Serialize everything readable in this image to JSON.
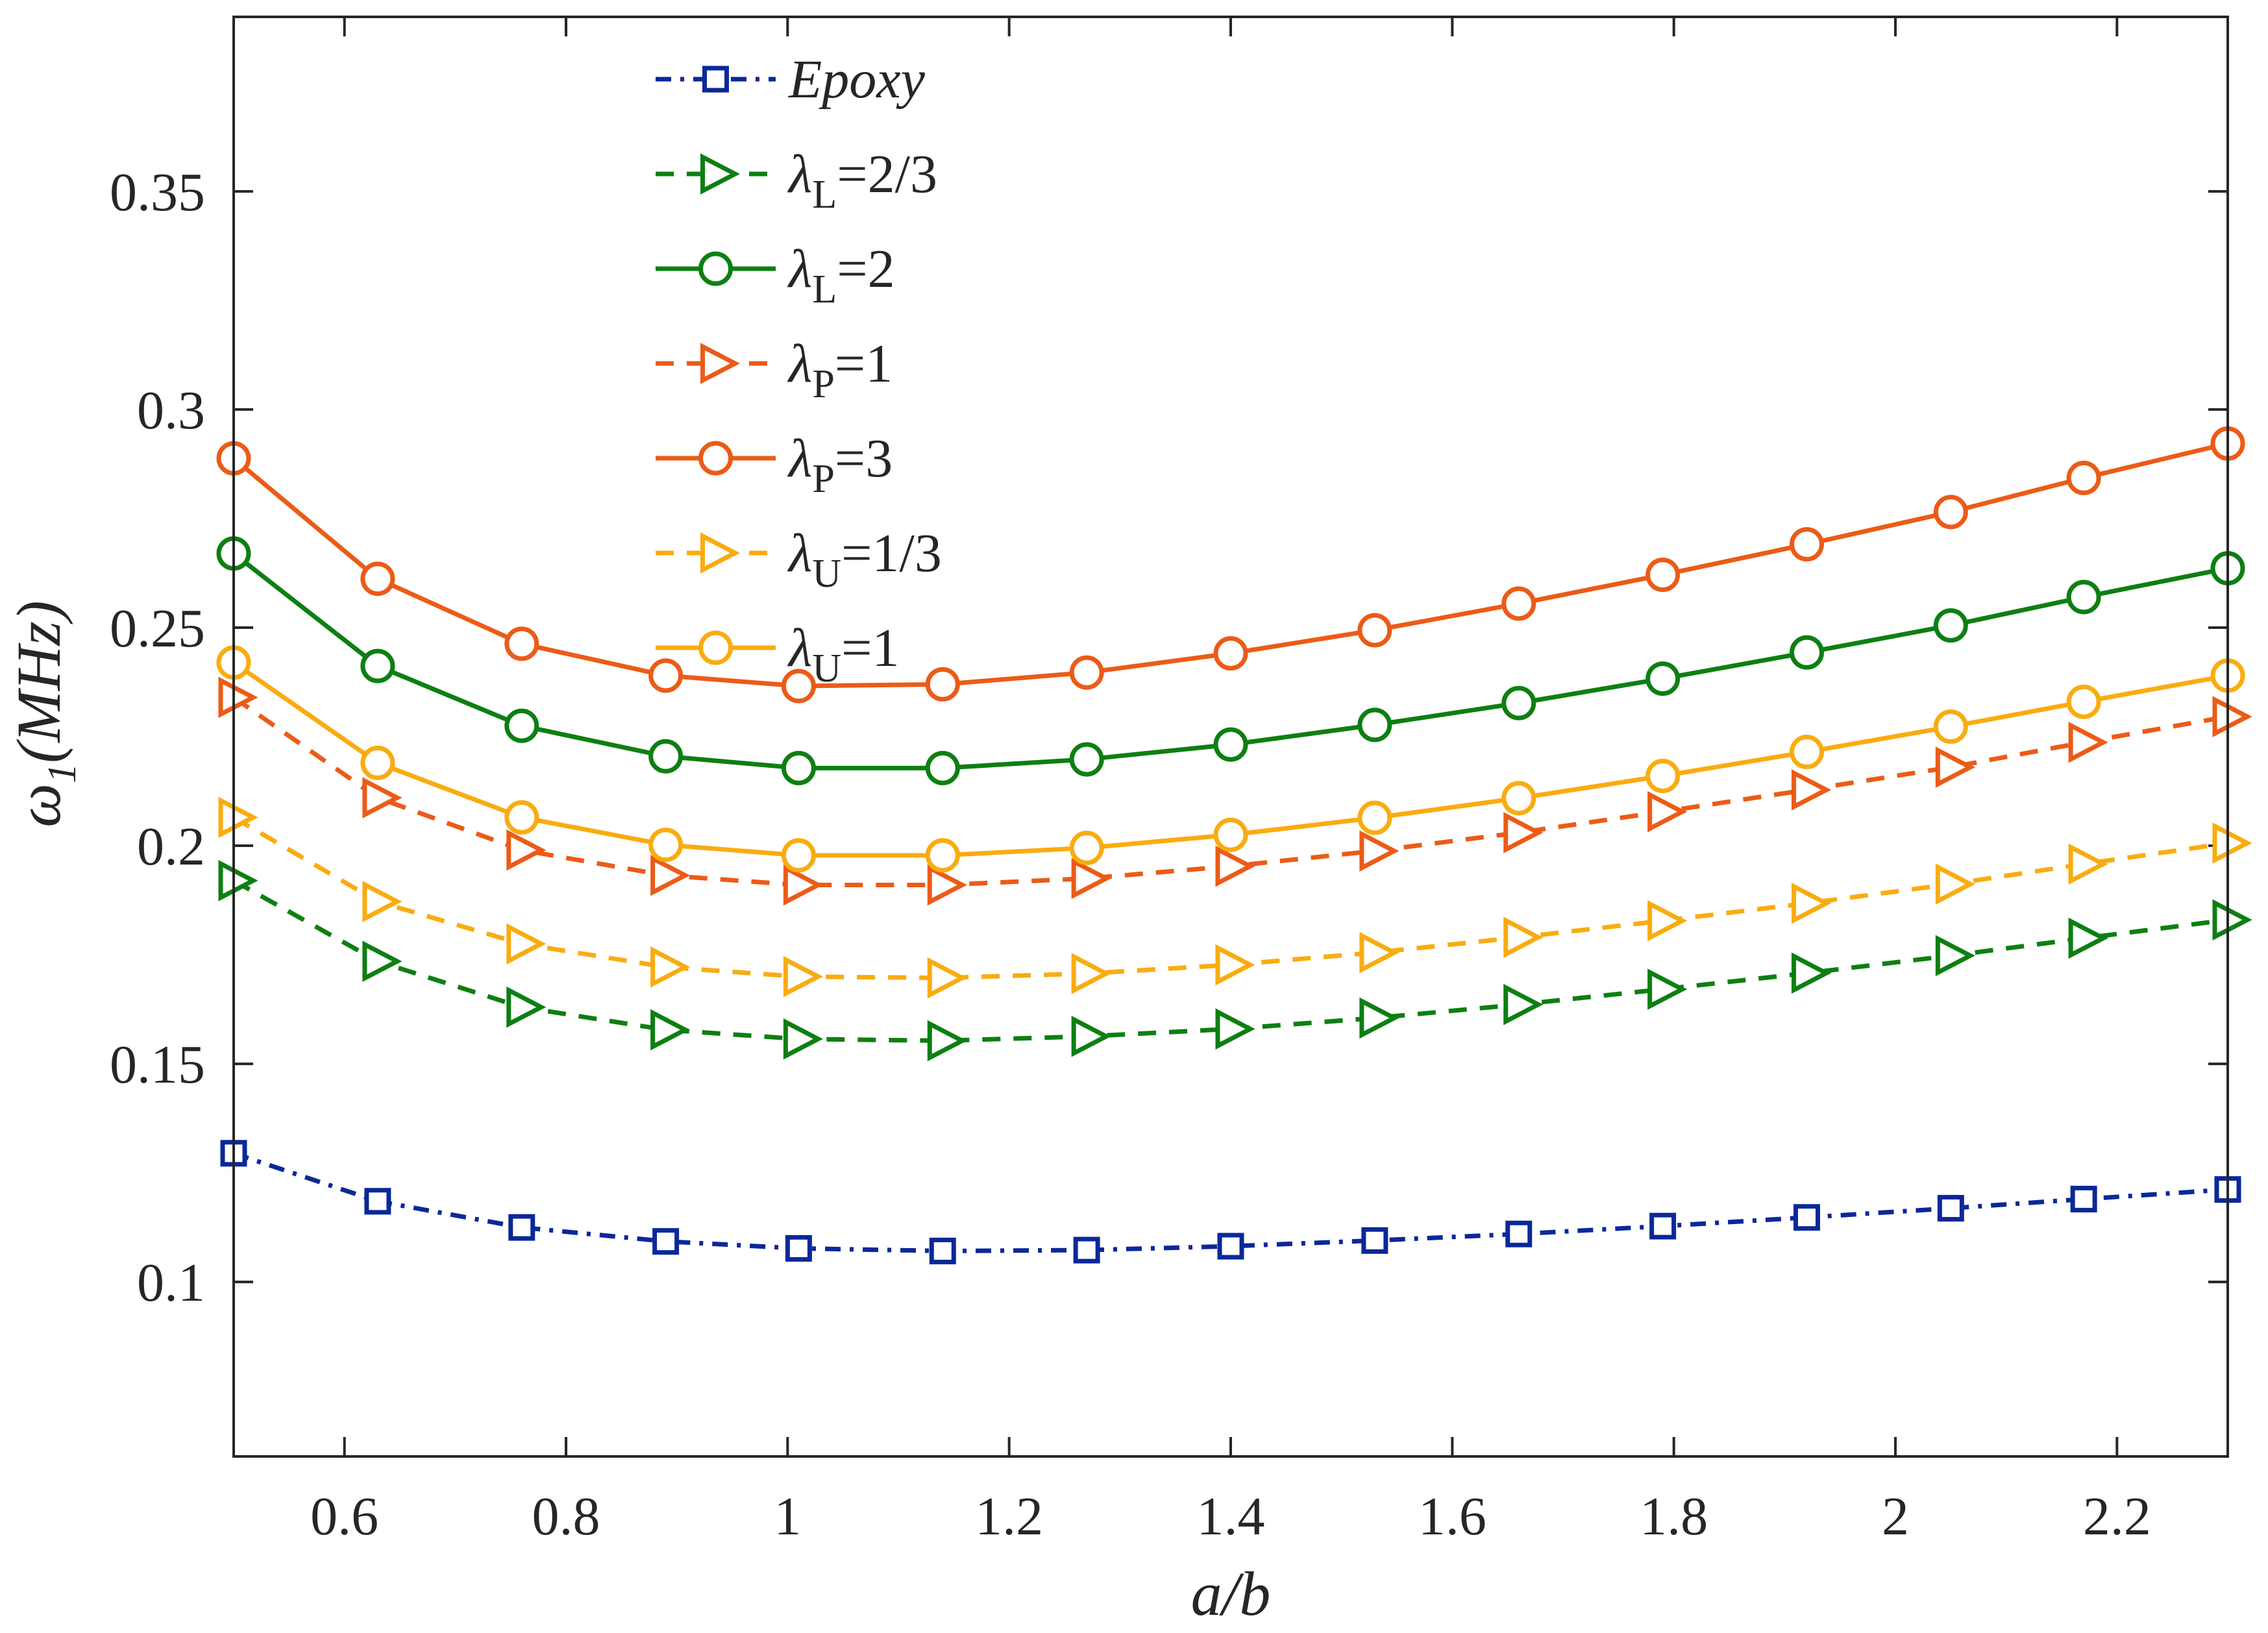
{
  "chart_data": {
    "type": "line",
    "title": "",
    "xlabel": "a/b",
    "ylabel": {
      "symbol": "ω",
      "subscript": "1",
      "units": "(MHz)"
    },
    "xlim": [
      0.5,
      2.3
    ],
    "ylim": [
      0.06,
      0.39
    ],
    "xticks": [
      0.6,
      0.8,
      1,
      1.2,
      1.4,
      1.6,
      1.8,
      2,
      2.2
    ],
    "xtick_labels": [
      "0.6",
      "0.8",
      "1",
      "1.2",
      "1.4",
      "1.6",
      "1.8",
      "2",
      "2.2"
    ],
    "yticks": [
      0.1,
      0.15,
      0.2,
      0.25,
      0.3,
      0.35
    ],
    "ytick_labels": [
      "0.1",
      "0.15",
      "0.2",
      "0.25",
      "0.3",
      "0.35"
    ],
    "grid": false,
    "legend_position": "top-center",
    "x": [
      0.5,
      0.63,
      0.76,
      0.89,
      1.01,
      1.14,
      1.27,
      1.4,
      1.53,
      1.66,
      1.79,
      1.92,
      2.05,
      2.17,
      2.3
    ],
    "series": [
      {
        "name": "Epoxy",
        "label": {
          "main": "Epoxy"
        },
        "color": "#0a2899",
        "marker": "square",
        "dash": "dashdot",
        "values": [
          0.1295,
          0.1185,
          0.1125,
          0.1093,
          0.1077,
          0.1071,
          0.1073,
          0.1082,
          0.1095,
          0.111,
          0.1128,
          0.1148,
          0.1169,
          0.119,
          0.1212
        ]
      },
      {
        "name": "λL=2/3",
        "label": {
          "main": "λ",
          "sub": "L",
          "suffix": "=2/3"
        },
        "color": "#0d7f12",
        "marker": "triangle-right",
        "dash": "dashed",
        "values": [
          0.192,
          0.1735,
          0.163,
          0.1578,
          0.1557,
          0.1553,
          0.1563,
          0.158,
          0.1605,
          0.1636,
          0.1671,
          0.1708,
          0.1748,
          0.1788,
          0.183
        ]
      },
      {
        "name": "λL=2",
        "label": {
          "main": "λ",
          "sub": "L",
          "suffix": "=2"
        },
        "color": "#0d7f12",
        "marker": "circle",
        "dash": "solid",
        "values": [
          0.267,
          0.2412,
          0.2275,
          0.2205,
          0.2178,
          0.2178,
          0.2198,
          0.2232,
          0.2277,
          0.2327,
          0.2383,
          0.2443,
          0.2505,
          0.257,
          0.2636
        ]
      },
      {
        "name": "λP=1",
        "label": {
          "main": "λ",
          "sub": "P",
          "suffix": "=1"
        },
        "color": "#ec5b17",
        "marker": "triangle-right",
        "dash": "dashed",
        "values": [
          0.234,
          0.211,
          0.199,
          0.1932,
          0.191,
          0.191,
          0.1925,
          0.1953,
          0.1988,
          0.203,
          0.2078,
          0.2128,
          0.218,
          0.2237,
          0.2296
        ]
      },
      {
        "name": "λP=3",
        "label": {
          "main": "λ",
          "sub": "P",
          "suffix": "=3"
        },
        "color": "#ec5b17",
        "marker": "circle",
        "dash": "solid",
        "values": [
          0.2888,
          0.2612,
          0.2463,
          0.239,
          0.2366,
          0.237,
          0.2397,
          0.2441,
          0.2494,
          0.2555,
          0.2621,
          0.2691,
          0.2765,
          0.2843,
          0.2922
        ]
      },
      {
        "name": "λU=1/3",
        "label": {
          "main": "λ",
          "sub": "U",
          "suffix": "=1/3"
        },
        "color": "#f9ac10",
        "marker": "triangle-right",
        "dash": "dashed",
        "values": [
          0.2065,
          0.1872,
          0.1775,
          0.1722,
          0.17,
          0.1697,
          0.1707,
          0.1727,
          0.1755,
          0.179,
          0.1828,
          0.1868,
          0.1912,
          0.1958,
          0.2006
        ]
      },
      {
        "name": "λU=1",
        "label": {
          "main": "λ",
          "sub": "U",
          "suffix": "=1"
        },
        "color": "#f9ac10",
        "marker": "circle",
        "dash": "solid",
        "values": [
          0.242,
          0.219,
          0.2065,
          0.2002,
          0.1978,
          0.1978,
          0.1995,
          0.2025,
          0.2064,
          0.2109,
          0.216,
          0.2215,
          0.2273,
          0.233,
          0.239
        ]
      }
    ]
  }
}
